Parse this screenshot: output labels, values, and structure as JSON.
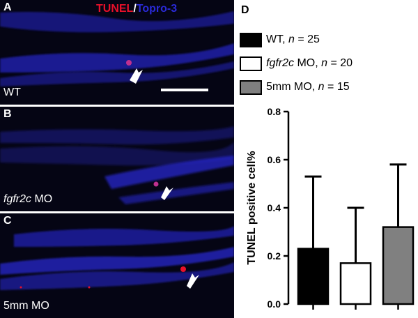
{
  "figure": {
    "panels": [
      {
        "letter": "A",
        "condition": "WT",
        "condition_italic": "",
        "condition_rest": "WT"
      },
      {
        "letter": "B",
        "condition": "fgfr2c MO",
        "condition_italic": "fgfr2c",
        "condition_rest": " MO"
      },
      {
        "letter": "C",
        "condition": "5mm MO",
        "condition_italic": "",
        "condition_rest": "5mm MO"
      }
    ],
    "stain": {
      "tunel": "TUNEL",
      "sep": "/",
      "topro": "Topro-3"
    },
    "colors": {
      "tunel": "#e8102a",
      "topro": "#2a2ad8",
      "background": "#050514"
    }
  },
  "chart_data": {
    "panel_letter": "D",
    "type": "bar",
    "categories": [
      "WT",
      "fgfr2c MO",
      "5mm MO"
    ],
    "legend": [
      {
        "italic": "",
        "label": "WT, ",
        "n_label": "n",
        "n_value": " = 25",
        "color": "#000000"
      },
      {
        "italic": "fgfr2c",
        "label": " MO, ",
        "n_label": "n",
        "n_value": " = 20",
        "color": "#ffffff"
      },
      {
        "italic": "",
        "label": "5mm MO, ",
        "n_label": "n",
        "n_value": " = 15",
        "color": "#808080"
      }
    ],
    "values": [
      0.23,
      0.17,
      0.32
    ],
    "error_upper": [
      0.53,
      0.4,
      0.58
    ],
    "ylabel": "TUNEL positive cell%",
    "ylim": [
      0,
      0.8
    ],
    "yticks": [
      "0.0",
      "0.2",
      "0.4",
      "0.6",
      "0.8"
    ]
  }
}
